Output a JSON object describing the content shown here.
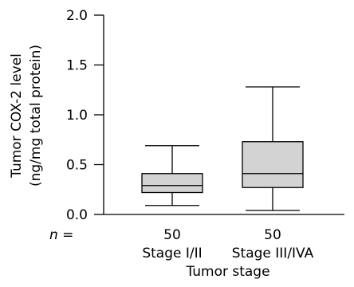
{
  "chart_data": {
    "type": "box",
    "ylabel_line1": "Tumor COX-2 level",
    "ylabel_line2": "(ng/mg total protein)",
    "xlabel": "Tumor stage",
    "n_label": "n =",
    "ylim": [
      0,
      2.0
    ],
    "yticks": [
      0.0,
      0.5,
      1.0,
      1.5,
      2.0
    ],
    "ytick_labels": [
      "0.0",
      "0.5",
      "1.0",
      "1.5",
      "2.0"
    ],
    "box_fill": "#d3d3d3",
    "groups": [
      {
        "category": "Stage I/II",
        "n": "50",
        "min": 0.09,
        "q1": 0.22,
        "median": 0.29,
        "q3": 0.41,
        "max": 0.69
      },
      {
        "category": "Stage III/IVA",
        "n": "50",
        "min": 0.04,
        "q1": 0.27,
        "median": 0.41,
        "q3": 0.73,
        "max": 1.28
      }
    ]
  }
}
